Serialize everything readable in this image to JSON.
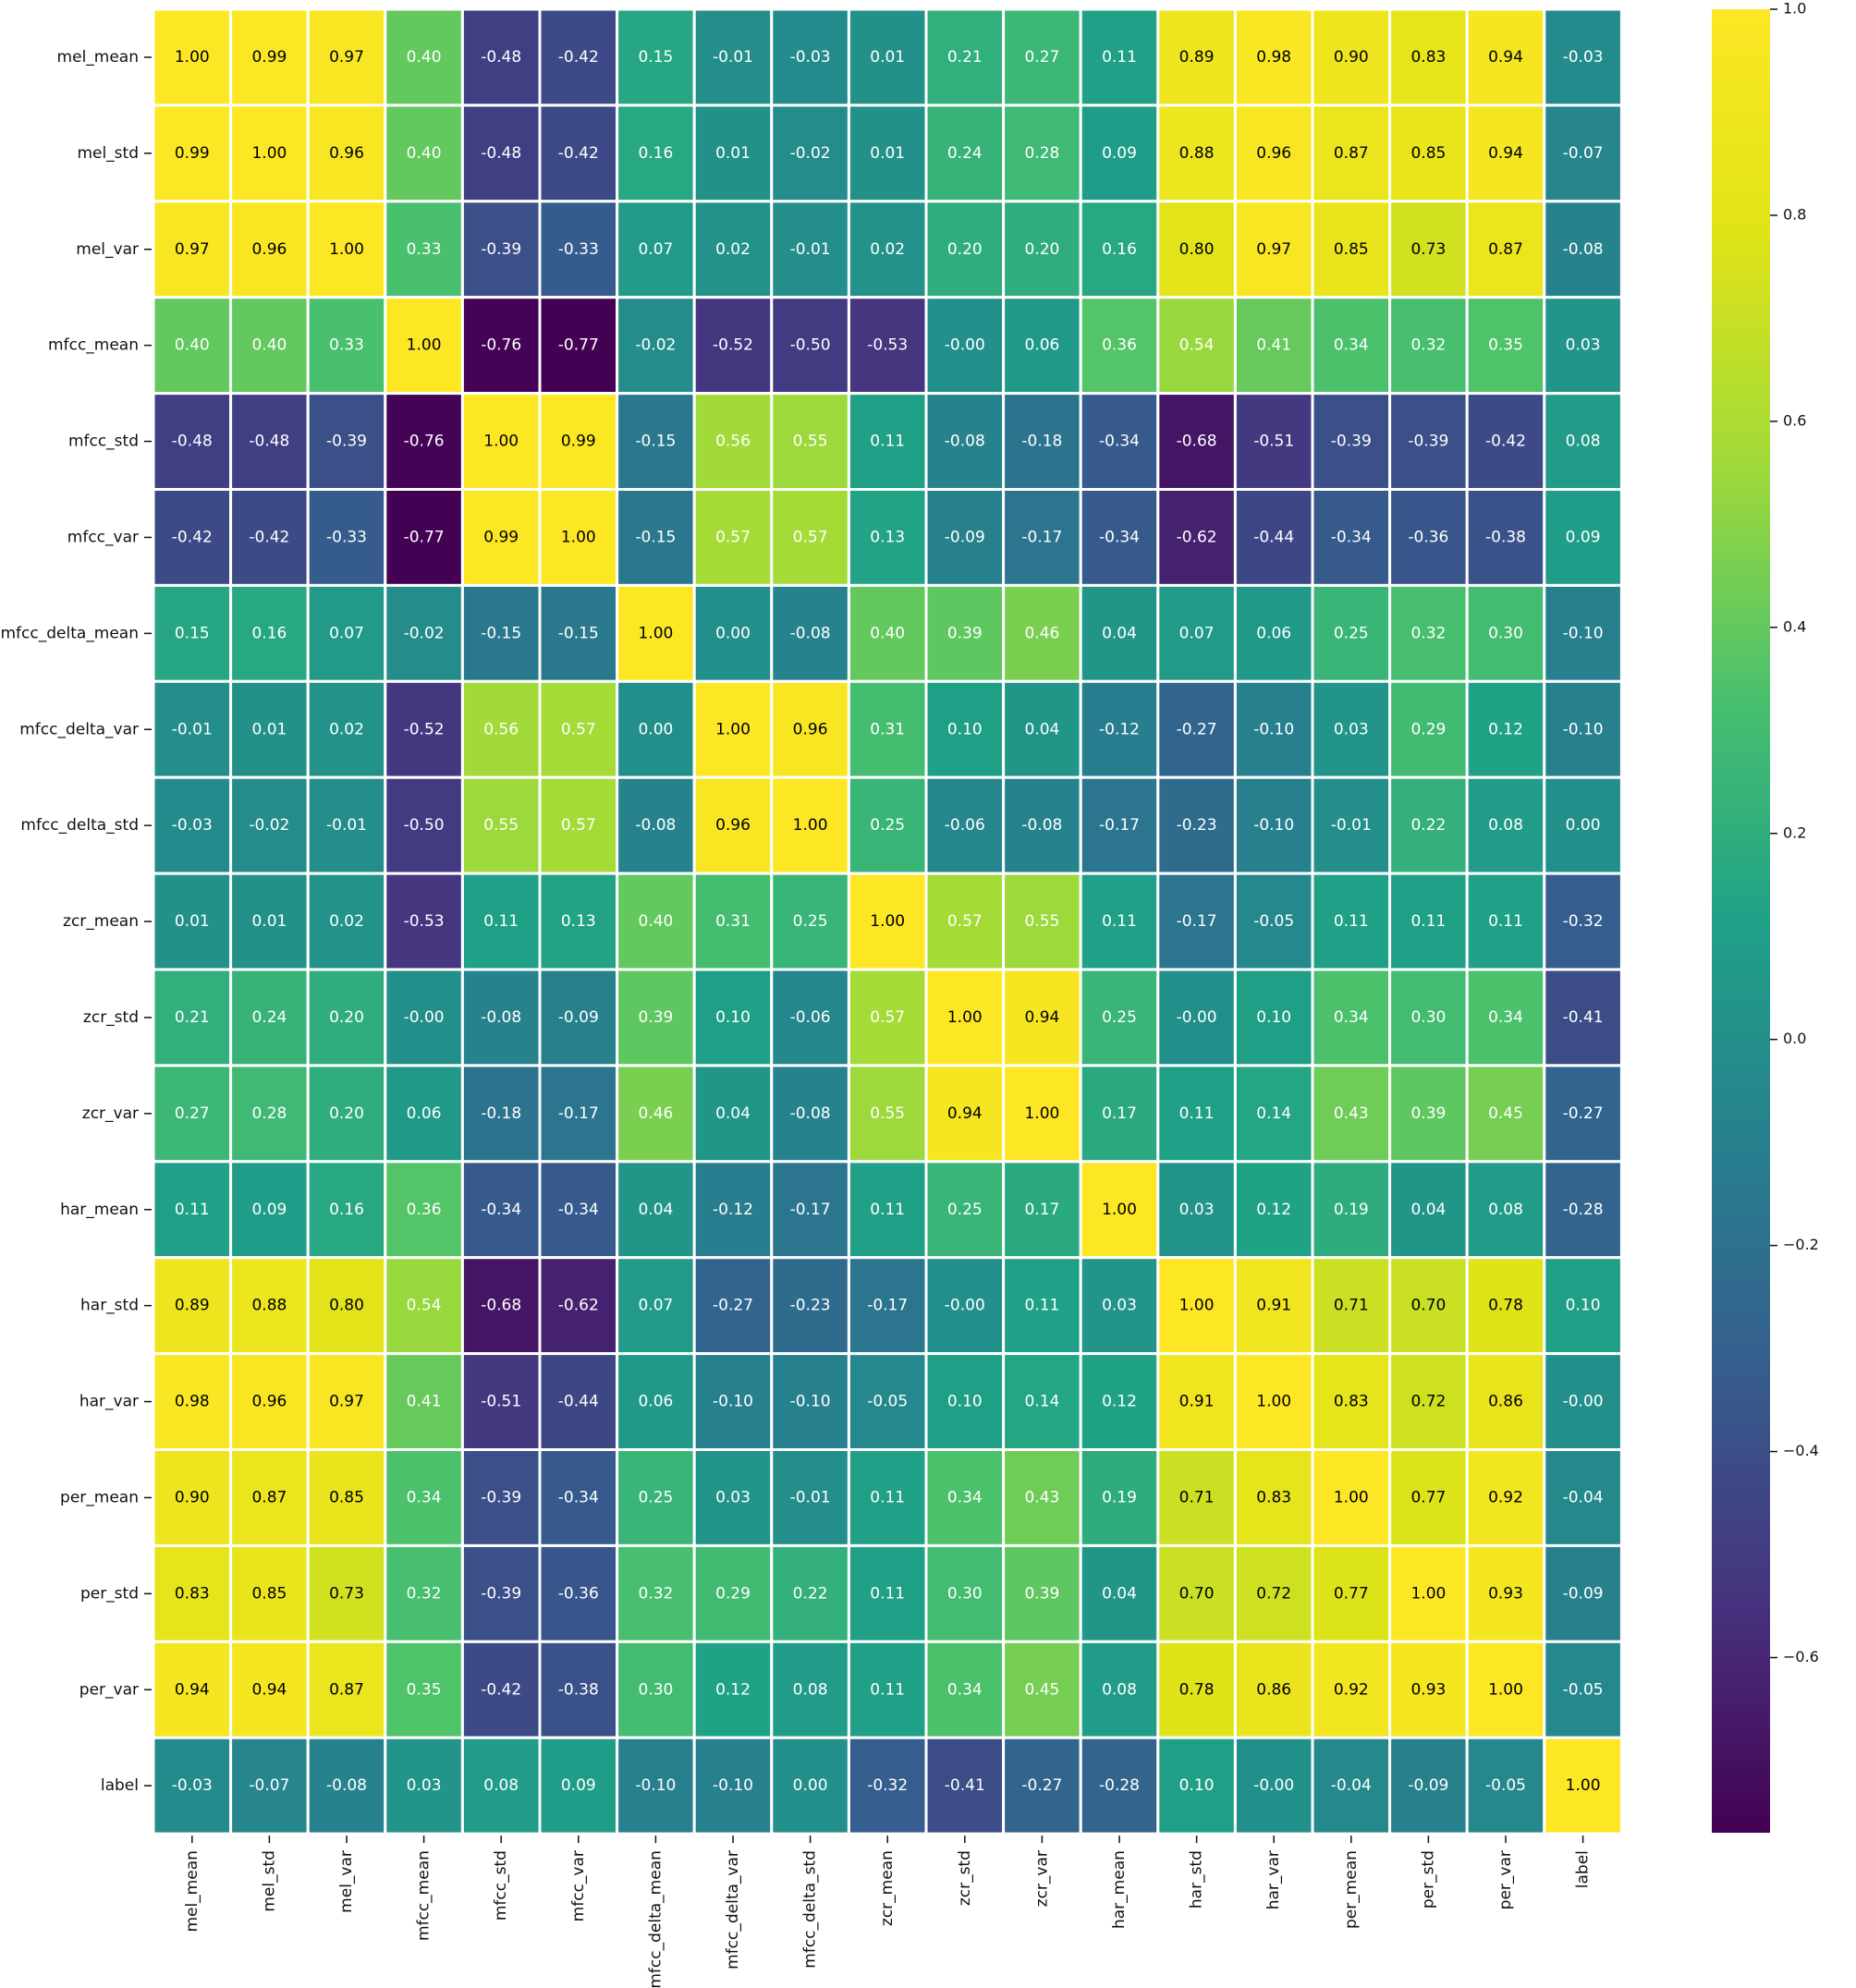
{
  "chart_data": {
    "type": "heatmap",
    "title": "",
    "xlabel": "",
    "ylabel": "",
    "row_labels": [
      "mel_mean",
      "mel_std",
      "mel_var",
      "mfcc_mean",
      "mfcc_std",
      "mfcc_var",
      "mfcc_delta_mean",
      "mfcc_delta_var",
      "mfcc_delta_std",
      "zcr_mean",
      "zcr_std",
      "zcr_var",
      "har_mean",
      "har_std",
      "har_var",
      "per_mean",
      "per_std",
      "per_var",
      "label"
    ],
    "col_labels": [
      "mel_mean",
      "mel_std",
      "mel_var",
      "mfcc_mean",
      "mfcc_std",
      "mfcc_var",
      "mfcc_delta_mean",
      "mfcc_delta_var",
      "mfcc_delta_std",
      "zcr_mean",
      "zcr_std",
      "zcr_var",
      "har_mean",
      "har_std",
      "har_var",
      "per_mean",
      "per_std",
      "per_var",
      "label"
    ],
    "values": [
      [
        1.0,
        0.99,
        0.97,
        0.4,
        -0.48,
        -0.42,
        0.15,
        -0.01,
        -0.03,
        0.01,
        0.21,
        0.27,
        0.11,
        0.89,
        0.98,
        0.9,
        0.83,
        0.94,
        -0.03
      ],
      [
        0.99,
        1.0,
        0.96,
        0.4,
        -0.48,
        -0.42,
        0.16,
        0.01,
        -0.02,
        0.01,
        0.24,
        0.28,
        0.09,
        0.88,
        0.96,
        0.87,
        0.85,
        0.94,
        -0.07
      ],
      [
        0.97,
        0.96,
        1.0,
        0.33,
        -0.39,
        -0.33,
        0.07,
        0.02,
        -0.01,
        0.02,
        0.2,
        0.2,
        0.16,
        0.8,
        0.97,
        0.85,
        0.73,
        0.87,
        -0.08
      ],
      [
        0.4,
        0.4,
        0.33,
        1.0,
        -0.76,
        -0.77,
        -0.02,
        -0.52,
        -0.5,
        -0.53,
        -0.0,
        0.06,
        0.36,
        0.54,
        0.41,
        0.34,
        0.32,
        0.35,
        0.03
      ],
      [
        -0.48,
        -0.48,
        -0.39,
        -0.76,
        1.0,
        0.99,
        -0.15,
        0.56,
        0.55,
        0.11,
        -0.08,
        -0.18,
        -0.34,
        -0.68,
        -0.51,
        -0.39,
        -0.39,
        -0.42,
        0.08
      ],
      [
        -0.42,
        -0.42,
        -0.33,
        -0.77,
        0.99,
        1.0,
        -0.15,
        0.57,
        0.57,
        0.13,
        -0.09,
        -0.17,
        -0.34,
        -0.62,
        -0.44,
        -0.34,
        -0.36,
        -0.38,
        0.09
      ],
      [
        0.15,
        0.16,
        0.07,
        -0.02,
        -0.15,
        -0.15,
        1.0,
        0.0,
        -0.08,
        0.4,
        0.39,
        0.46,
        0.04,
        0.07,
        0.06,
        0.25,
        0.32,
        0.3,
        -0.1
      ],
      [
        -0.01,
        0.01,
        0.02,
        -0.52,
        0.56,
        0.57,
        0.0,
        1.0,
        0.96,
        0.31,
        0.1,
        0.04,
        -0.12,
        -0.27,
        -0.1,
        0.03,
        0.29,
        0.12,
        -0.1
      ],
      [
        -0.03,
        -0.02,
        -0.01,
        -0.5,
        0.55,
        0.57,
        -0.08,
        0.96,
        1.0,
        0.25,
        -0.06,
        -0.08,
        -0.17,
        -0.23,
        -0.1,
        -0.01,
        0.22,
        0.08,
        0.0
      ],
      [
        0.01,
        0.01,
        0.02,
        -0.53,
        0.11,
        0.13,
        0.4,
        0.31,
        0.25,
        1.0,
        0.57,
        0.55,
        0.11,
        -0.17,
        -0.05,
        0.11,
        0.11,
        0.11,
        -0.32
      ],
      [
        0.21,
        0.24,
        0.2,
        -0.0,
        -0.08,
        -0.09,
        0.39,
        0.1,
        -0.06,
        0.57,
        1.0,
        0.94,
        0.25,
        -0.0,
        0.1,
        0.34,
        0.3,
        0.34,
        -0.41
      ],
      [
        0.27,
        0.28,
        0.2,
        0.06,
        -0.18,
        -0.17,
        0.46,
        0.04,
        -0.08,
        0.55,
        0.94,
        1.0,
        0.17,
        0.11,
        0.14,
        0.43,
        0.39,
        0.45,
        -0.27
      ],
      [
        0.11,
        0.09,
        0.16,
        0.36,
        -0.34,
        -0.34,
        0.04,
        -0.12,
        -0.17,
        0.11,
        0.25,
        0.17,
        1.0,
        0.03,
        0.12,
        0.19,
        0.04,
        0.08,
        -0.28
      ],
      [
        0.89,
        0.88,
        0.8,
        0.54,
        -0.68,
        -0.62,
        0.07,
        -0.27,
        -0.23,
        -0.17,
        -0.0,
        0.11,
        0.03,
        1.0,
        0.91,
        0.71,
        0.7,
        0.78,
        0.1
      ],
      [
        0.98,
        0.96,
        0.97,
        0.41,
        -0.51,
        -0.44,
        0.06,
        -0.1,
        -0.1,
        -0.05,
        0.1,
        0.14,
        0.12,
        0.91,
        1.0,
        0.83,
        0.72,
        0.86,
        -0.0
      ],
      [
        0.9,
        0.87,
        0.85,
        0.34,
        -0.39,
        -0.34,
        0.25,
        0.03,
        -0.01,
        0.11,
        0.34,
        0.43,
        0.19,
        0.71,
        0.83,
        1.0,
        0.77,
        0.92,
        -0.04
      ],
      [
        0.83,
        0.85,
        0.73,
        0.32,
        -0.39,
        -0.36,
        0.32,
        0.29,
        0.22,
        0.11,
        0.3,
        0.39,
        0.04,
        0.7,
        0.72,
        0.77,
        1.0,
        0.93,
        -0.09
      ],
      [
        0.94,
        0.94,
        0.87,
        0.35,
        -0.42,
        -0.38,
        0.3,
        0.12,
        0.08,
        0.11,
        0.34,
        0.45,
        0.08,
        0.78,
        0.86,
        0.92,
        0.93,
        1.0,
        -0.05
      ],
      [
        -0.03,
        -0.07,
        -0.08,
        0.03,
        0.08,
        0.09,
        -0.1,
        -0.1,
        0.0,
        -0.32,
        -0.41,
        -0.27,
        -0.28,
        0.1,
        -0.0,
        -0.04,
        -0.09,
        -0.05,
        1.0
      ]
    ],
    "cell_labels": [
      [
        "1.00",
        "0.99",
        "0.97",
        "0.40",
        "-0.48",
        "-0.42",
        "0.15",
        "-0.01",
        "-0.03",
        "0.01",
        "0.21",
        "0.27",
        "0.11",
        "0.89",
        "0.98",
        "0.90",
        "0.83",
        "0.94",
        "-0.03"
      ],
      [
        "0.99",
        "1.00",
        "0.96",
        "0.40",
        "-0.48",
        "-0.42",
        "0.16",
        "0.01",
        "-0.02",
        "0.01",
        "0.24",
        "0.28",
        "0.09",
        "0.88",
        "0.96",
        "0.87",
        "0.85",
        "0.94",
        "-0.07"
      ],
      [
        "0.97",
        "0.96",
        "1.00",
        "0.33",
        "-0.39",
        "-0.33",
        "0.07",
        "0.02",
        "-0.01",
        "0.02",
        "0.20",
        "0.20",
        "0.16",
        "0.80",
        "0.97",
        "0.85",
        "0.73",
        "0.87",
        "-0.08"
      ],
      [
        "0.40",
        "0.40",
        "0.33",
        "1.00",
        "-0.76",
        "-0.77",
        "-0.02",
        "-0.52",
        "-0.50",
        "-0.53",
        "-0.00",
        "0.06",
        "0.36",
        "0.54",
        "0.41",
        "0.34",
        "0.32",
        "0.35",
        "0.03"
      ],
      [
        "-0.48",
        "-0.48",
        "-0.39",
        "-0.76",
        "1.00",
        "0.99",
        "-0.15",
        "0.56",
        "0.55",
        "0.11",
        "-0.08",
        "-0.18",
        "-0.34",
        "-0.68",
        "-0.51",
        "-0.39",
        "-0.39",
        "-0.42",
        "0.08"
      ],
      [
        "-0.42",
        "-0.42",
        "-0.33",
        "-0.77",
        "0.99",
        "1.00",
        "-0.15",
        "0.57",
        "0.57",
        "0.13",
        "-0.09",
        "-0.17",
        "-0.34",
        "-0.62",
        "-0.44",
        "-0.34",
        "-0.36",
        "-0.38",
        "0.09"
      ],
      [
        "0.15",
        "0.16",
        "0.07",
        "-0.02",
        "-0.15",
        "-0.15",
        "1.00",
        "0.00",
        "-0.08",
        "0.40",
        "0.39",
        "0.46",
        "0.04",
        "0.07",
        "0.06",
        "0.25",
        "0.32",
        "0.30",
        "-0.10"
      ],
      [
        "-0.01",
        "0.01",
        "0.02",
        "-0.52",
        "0.56",
        "0.57",
        "0.00",
        "1.00",
        "0.96",
        "0.31",
        "0.10",
        "0.04",
        "-0.12",
        "-0.27",
        "-0.10",
        "0.03",
        "0.29",
        "0.12",
        "-0.10"
      ],
      [
        "-0.03",
        "-0.02",
        "-0.01",
        "-0.50",
        "0.55",
        "0.57",
        "-0.08",
        "0.96",
        "1.00",
        "0.25",
        "-0.06",
        "-0.08",
        "-0.17",
        "-0.23",
        "-0.10",
        "-0.01",
        "0.22",
        "0.08",
        "0.00"
      ],
      [
        "0.01",
        "0.01",
        "0.02",
        "-0.53",
        "0.11",
        "0.13",
        "0.40",
        "0.31",
        "0.25",
        "1.00",
        "0.57",
        "0.55",
        "0.11",
        "-0.17",
        "-0.05",
        "0.11",
        "0.11",
        "0.11",
        "-0.32"
      ],
      [
        "0.21",
        "0.24",
        "0.20",
        "-0.00",
        "-0.08",
        "-0.09",
        "0.39",
        "0.10",
        "-0.06",
        "0.57",
        "1.00",
        "0.94",
        "0.25",
        "-0.00",
        "0.10",
        "0.34",
        "0.30",
        "0.34",
        "-0.41"
      ],
      [
        "0.27",
        "0.28",
        "0.20",
        "0.06",
        "-0.18",
        "-0.17",
        "0.46",
        "0.04",
        "-0.08",
        "0.55",
        "0.94",
        "1.00",
        "0.17",
        "0.11",
        "0.14",
        "0.43",
        "0.39",
        "0.45",
        "-0.27"
      ],
      [
        "0.11",
        "0.09",
        "0.16",
        "0.36",
        "-0.34",
        "-0.34",
        "0.04",
        "-0.12",
        "-0.17",
        "0.11",
        "0.25",
        "0.17",
        "1.00",
        "0.03",
        "0.12",
        "0.19",
        "0.04",
        "0.08",
        "-0.28"
      ],
      [
        "0.89",
        "0.88",
        "0.80",
        "0.54",
        "-0.68",
        "-0.62",
        "0.07",
        "-0.27",
        "-0.23",
        "-0.17",
        "-0.00",
        "0.11",
        "0.03",
        "1.00",
        "0.91",
        "0.71",
        "0.70",
        "0.78",
        "0.10"
      ],
      [
        "0.98",
        "0.96",
        "0.97",
        "0.41",
        "-0.51",
        "-0.44",
        "0.06",
        "-0.10",
        "-0.10",
        "-0.05",
        "0.10",
        "0.14",
        "0.12",
        "0.91",
        "1.00",
        "0.83",
        "0.72",
        "0.86",
        "-0.00"
      ],
      [
        "0.90",
        "0.87",
        "0.85",
        "0.34",
        "-0.39",
        "-0.34",
        "0.25",
        "0.03",
        "-0.01",
        "0.11",
        "0.34",
        "0.43",
        "0.19",
        "0.71",
        "0.83",
        "1.00",
        "0.77",
        "0.92",
        "-0.04"
      ],
      [
        "0.83",
        "0.85",
        "0.73",
        "0.32",
        "-0.39",
        "-0.36",
        "0.32",
        "0.29",
        "0.22",
        "0.11",
        "0.30",
        "0.39",
        "0.04",
        "0.70",
        "0.72",
        "0.77",
        "1.00",
        "0.93",
        "-0.09"
      ],
      [
        "0.94",
        "0.94",
        "0.87",
        "0.35",
        "-0.42",
        "-0.38",
        "0.30",
        "0.12",
        "0.08",
        "0.11",
        "0.34",
        "0.45",
        "0.08",
        "0.78",
        "0.86",
        "0.92",
        "0.93",
        "1.00",
        "-0.05"
      ],
      [
        "-0.03",
        "-0.07",
        "-0.08",
        "0.03",
        "0.08",
        "0.09",
        "-0.10",
        "-0.10",
        "0.00",
        "-0.32",
        "-0.41",
        "-0.27",
        "-0.28",
        "0.10",
        "-0.00",
        "-0.04",
        "-0.09",
        "-0.05",
        "1.00"
      ]
    ],
    "colorbar": {
      "min": -0.77,
      "max": 1.0,
      "ticks": [
        1.0,
        0.8,
        0.6,
        0.4,
        0.2,
        0.0,
        -0.2,
        -0.4,
        -0.6
      ],
      "tick_labels": [
        "1.0",
        "0.8",
        "0.6",
        "0.4",
        "0.2",
        "0.0",
        "−0.2",
        "−0.4",
        "−0.6"
      ],
      "colormap": "viridis"
    },
    "colors": {
      "grid_line": "#ffffff",
      "text_dark": "#000000",
      "text_light": "#ffffff",
      "axis_text": "#111111"
    }
  }
}
